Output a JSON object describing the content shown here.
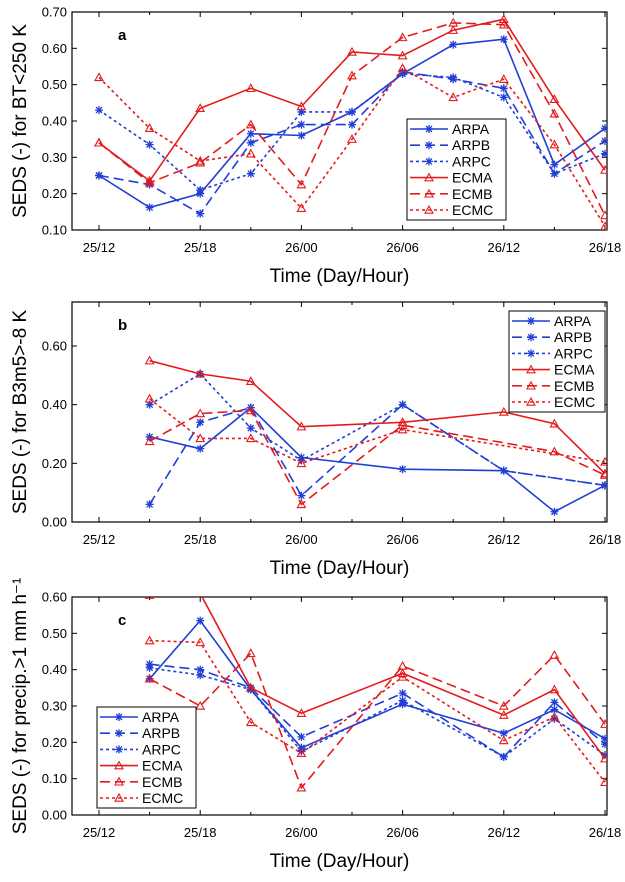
{
  "colors": {
    "ARP": "#1f3fd6",
    "ECM": "#e41a1c"
  },
  "chart_data": [
    {
      "type": "line",
      "panel_label": "a",
      "ylabel": "SEDS (-) for BT<250 K",
      "xlabel": "Time (Day/Hour)",
      "ylim": [
        0.1,
        0.7
      ],
      "yticks": [
        "0.10",
        "0.20",
        "0.30",
        "0.40",
        "0.50",
        "0.60",
        "0.70"
      ],
      "xticks": [
        "25/12",
        "25/18",
        "26/00",
        "26/06",
        "26/12",
        "26/18"
      ],
      "legend_position": "lower-right",
      "series": [
        {
          "name": "ARPA",
          "values": [
            0.25,
            0.162,
            0.2,
            0.365,
            0.36,
            0.425,
            0.53,
            0.61,
            0.625,
            0.28,
            0.38
          ]
        },
        {
          "name": "ARPB",
          "values": [
            0.25,
            0.225,
            0.145,
            0.34,
            0.39,
            0.39,
            0.535,
            0.515,
            0.49,
            0.255,
            0.345
          ]
        },
        {
          "name": "ARPC",
          "values": [
            0.43,
            0.335,
            0.21,
            0.255,
            0.425,
            0.425,
            0.53,
            0.52,
            0.465,
            0.255,
            0.31
          ]
        },
        {
          "name": "ECMA",
          "values": [
            0.34,
            0.235,
            0.435,
            0.49,
            0.44,
            0.59,
            0.58,
            0.65,
            0.68,
            0.46,
            0.265
          ]
        },
        {
          "name": "ECMB",
          "values": [
            0.34,
            0.23,
            0.285,
            0.39,
            0.225,
            0.525,
            0.63,
            0.67,
            0.665,
            0.42,
            0.14
          ]
        },
        {
          "name": "ECMC",
          "values": [
            0.52,
            0.38,
            0.29,
            0.31,
            0.16,
            0.35,
            0.545,
            0.465,
            0.515,
            0.335,
            0.11
          ]
        }
      ]
    },
    {
      "type": "line",
      "panel_label": "b",
      "ylabel": "SEDS (-) for B3m5>-8 K",
      "xlabel": "Time (Day/Hour)",
      "ylim": [
        0.0,
        0.75
      ],
      "yticks": [
        "0.00",
        "0.20",
        "0.40",
        "0.60"
      ],
      "xticks": [
        "25/12",
        "25/18",
        "26/00",
        "26/06",
        "26/12",
        "26/18"
      ],
      "legend_position": "top-right",
      "series": [
        {
          "name": "ARPA",
          "values": [
            null,
            0.29,
            0.25,
            0.39,
            0.22,
            null,
            0.18,
            null,
            0.175,
            0.035,
            0.125
          ]
        },
        {
          "name": "ARPB",
          "values": [
            null,
            0.06,
            0.34,
            0.39,
            0.09,
            null,
            0.4,
            null,
            0.175,
            null,
            0.125
          ]
        },
        {
          "name": "ARPC",
          "values": [
            null,
            0.4,
            0.505,
            0.32,
            0.21,
            null,
            0.4,
            null,
            0.175,
            null,
            0.125
          ]
        },
        {
          "name": "ECMA",
          "values": [
            null,
            0.55,
            0.505,
            0.48,
            0.325,
            null,
            0.34,
            null,
            0.375,
            0.335,
            0.165
          ]
        },
        {
          "name": "ECMB",
          "values": [
            null,
            0.275,
            0.37,
            0.38,
            0.06,
            null,
            0.33,
            null,
            null,
            0.24,
            0.16
          ]
        },
        {
          "name": "ECMC",
          "values": [
            null,
            0.42,
            0.285,
            0.285,
            0.2,
            null,
            0.315,
            null,
            null,
            null,
            0.205
          ]
        }
      ]
    },
    {
      "type": "line",
      "panel_label": "c",
      "ylabel": "SEDS (-) for precip.>1 mm h⁻¹",
      "xlabel": "Time (Day/Hour)",
      "ylim": [
        0.0,
        0.6
      ],
      "yticks": [
        "0.00",
        "0.10",
        "0.20",
        "0.30",
        "0.40",
        "0.50",
        "0.60"
      ],
      "xticks": [
        "25/12",
        "25/18",
        "26/00",
        "26/06",
        "26/12",
        "26/18"
      ],
      "legend_position": "lower-left",
      "series": [
        {
          "name": "ARPA",
          "values": [
            null,
            0.375,
            0.535,
            0.345,
            0.185,
            null,
            0.305,
            null,
            0.225,
            0.29,
            0.21
          ]
        },
        {
          "name": "ARPB",
          "values": [
            null,
            0.415,
            0.4,
            0.35,
            0.215,
            null,
            0.335,
            null,
            0.16,
            0.31,
            0.195
          ]
        },
        {
          "name": "ARPC",
          "values": [
            null,
            0.405,
            0.385,
            0.345,
            0.175,
            null,
            0.315,
            null,
            0.16,
            0.265,
            0.165
          ]
        },
        {
          "name": "ECMA",
          "values": [
            null,
            0.605,
            0.61,
            0.35,
            0.28,
            null,
            0.39,
            null,
            0.275,
            0.345,
            0.155
          ]
        },
        {
          "name": "ECMB",
          "values": [
            null,
            0.375,
            0.3,
            0.445,
            0.075,
            null,
            0.41,
            null,
            0.3,
            0.44,
            0.25
          ]
        },
        {
          "name": "ECMC",
          "values": [
            null,
            0.48,
            0.475,
            0.255,
            0.17,
            null,
            0.38,
            null,
            0.205,
            0.27,
            0.09
          ]
        }
      ]
    }
  ]
}
